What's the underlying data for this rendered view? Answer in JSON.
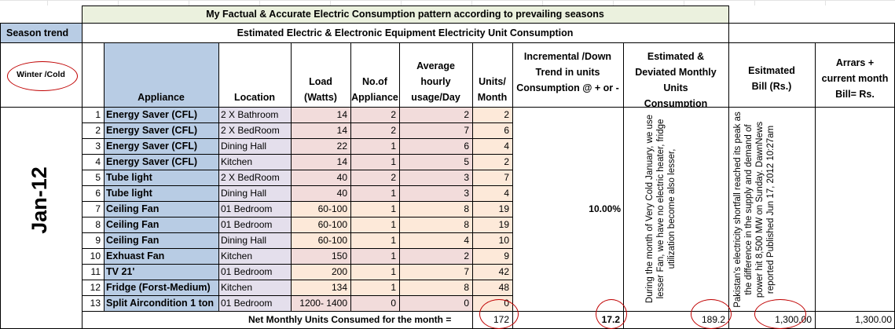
{
  "title": "My Factual & Accurate Electric Consumption pattern according to prevailing seasons",
  "season_trend_label": "Season trend",
  "subtitle": "Estimated Electric & Electronic Equipment Electricity Unit Consumption",
  "season": "Winter /Cold",
  "month": "Jan-12",
  "headers": {
    "appliance": "Appliance",
    "location": "Location",
    "load": "Load (Watts)",
    "no_of_appliance": "No.of Appliance",
    "avg_usage": "Average hourly usage/Day",
    "units_month": "Units/ Month",
    "incremental": "Incremental /Down Trend in units Consumption @ + or -",
    "estimated_units": "Estimated & Deviated Monthly Units Consumption",
    "estimated_bill": "Esitmated Bill (Rs.)",
    "arrears": "Arrars + current month Bill= Rs."
  },
  "rows": [
    {
      "no": "1",
      "appliance": "Energy Saver (CFL)",
      "location": "2 X Bathroom",
      "load": "14",
      "count": "2",
      "usage": "2",
      "units": "2"
    },
    {
      "no": "2",
      "appliance": "Energy Saver (CFL)",
      "location": "2 X BedRoom",
      "load": "14",
      "count": "2",
      "usage": "7",
      "units": "6"
    },
    {
      "no": "3",
      "appliance": "Energy Saver (CFL)",
      "location": "Dining Hall",
      "load": "22",
      "count": "1",
      "usage": "6",
      "units": "4"
    },
    {
      "no": "4",
      "appliance": "Energy Saver (CFL)",
      "location": "Kitchen",
      "load": "14",
      "count": "1",
      "usage": "5",
      "units": "2"
    },
    {
      "no": "5",
      "appliance": "Tube light",
      "location": "2 X BedRoom",
      "load": "40",
      "count": "2",
      "usage": "3",
      "units": "7"
    },
    {
      "no": "6",
      "appliance": "Tube light",
      "location": "Dining Hall",
      "load": "40",
      "count": "1",
      "usage": "3",
      "units": "4"
    },
    {
      "no": "7",
      "appliance": "Ceiling Fan",
      "location": "01 Bedroom",
      "load": "60-100",
      "count": "1",
      "usage": "8",
      "units": "19"
    },
    {
      "no": "8",
      "appliance": "Ceiling Fan",
      "location": "01 Bedroom",
      "load": "60-100",
      "count": "1",
      "usage": "8",
      "units": "19"
    },
    {
      "no": "9",
      "appliance": "Ceiling Fan",
      "location": "Dining Hall",
      "load": "60-100",
      "count": "1",
      "usage": "4",
      "units": "10"
    },
    {
      "no": "10",
      "appliance": "Exhuast Fan",
      "location": "Kitchen",
      "load": "150",
      "count": "1",
      "usage": "2",
      "units": "9"
    },
    {
      "no": "11",
      "appliance": "TV 21'",
      "location": "01 Bedroom",
      "load": "200",
      "count": "1",
      "usage": "7",
      "units": "42"
    },
    {
      "no": "12",
      "appliance": "Fridge (Forst-Medium)",
      "location": "Kitchen",
      "load": "134",
      "count": "1",
      "usage": "8",
      "units": "48"
    },
    {
      "no": "13",
      "appliance": "Split Aircondition 1 ton",
      "location": "01 Bedroom",
      "load": "1200- 1400",
      "count": "0",
      "usage": "0",
      "units": "0"
    }
  ],
  "incremental_percent": "10.00%",
  "note_units": "During the month of Very Cold January, we use lesser Fan, we have no electric heater, fridge utilization become also lesser,",
  "note_bill": "Pakistan's electricity shortfall reached its peak as the difference in the supply and demand of power hit 8,500 MW on Sunday. DawnNews reported Published Jun 17, 2012 10:27am",
  "total_label": "Net Monthly Units Consumed for the month =",
  "total_units": "172",
  "total_incremental": "17.2",
  "total_estimated": "189.2",
  "total_bill": "1,300.00",
  "total_arrears": "1,300.00",
  "colors": {
    "title_bg": "#ebf1de",
    "season_bg": "#b8cce4",
    "appliance_bg": "#b8cce4",
    "location_bg": "#e4dfec",
    "pink": "#f2dcdb",
    "peach": "#fde9d9",
    "annotation": "#c00000"
  }
}
